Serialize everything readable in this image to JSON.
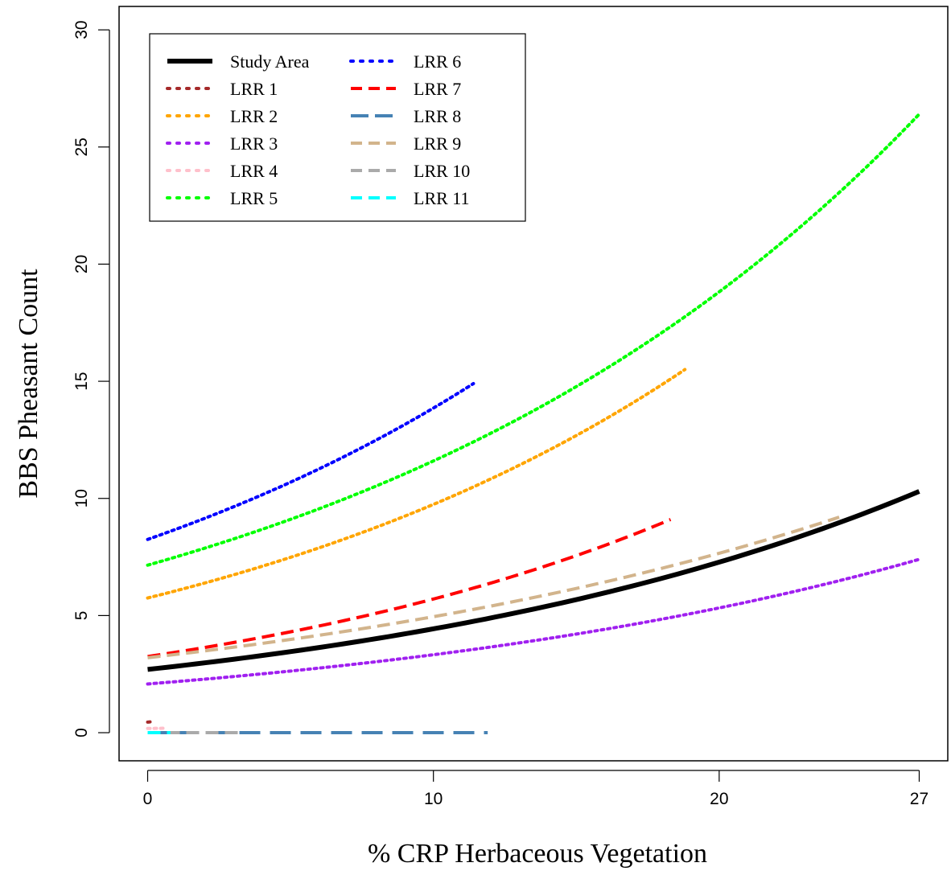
{
  "chart_data": {
    "type": "line",
    "title": "",
    "xlabel": "% CRP Herbaceous Vegetation",
    "ylabel": "BBS Pheasant Count",
    "xlim": [
      -1,
      28
    ],
    "ylim": [
      -1.2,
      31
    ],
    "xticks": [
      0,
      10,
      20,
      27
    ],
    "xtick_labels": [
      "0",
      "10",
      "20",
      "27"
    ],
    "yticks": [
      0,
      5,
      10,
      15,
      20,
      25,
      30
    ],
    "ytick_labels": [
      "0",
      "5",
      "10",
      "15",
      "20",
      "25",
      "30"
    ],
    "grid": false,
    "legend": {
      "position": "top-left",
      "columns": 2
    },
    "series": [
      {
        "name": "Study Area",
        "color": "#000000",
        "style": "solid",
        "x_max": 27,
        "y0": 2.7,
        "y1": 10.3
      },
      {
        "name": "LRR 1",
        "color": "#a52a2a",
        "style": "dotted",
        "x_max": 0.15,
        "y0": 0.45,
        "y1": 0.47
      },
      {
        "name": "LRR 2",
        "color": "#ffa500",
        "style": "dotted",
        "x_max": 18.8,
        "y0": 5.75,
        "y1": 15.5
      },
      {
        "name": "LRR 3",
        "color": "#a020f0",
        "style": "dotted",
        "x_max": 27,
        "y0": 2.08,
        "y1": 7.4
      },
      {
        "name": "LRR 4",
        "color": "#ffc0cb",
        "style": "dotted",
        "x_max": 0.6,
        "y0": 0.18,
        "y1": 0.19
      },
      {
        "name": "LRR 5",
        "color": "#00ff00",
        "style": "dotted",
        "x_max": 27,
        "y0": 7.15,
        "y1": 26.4
      },
      {
        "name": "LRR 6",
        "color": "#0000ff",
        "style": "dotted",
        "x_max": 11.4,
        "y0": 8.25,
        "y1": 14.9
      },
      {
        "name": "LRR 7",
        "color": "#ff0000",
        "style": "dashed",
        "x_max": 18.3,
        "y0": 3.25,
        "y1": 9.1
      },
      {
        "name": "LRR 8",
        "color": "#4682b4",
        "style": "longdash",
        "x_max": 11.9,
        "y0": 0.0,
        "y1": 0.0
      },
      {
        "name": "LRR 9",
        "color": "#d2b48c",
        "style": "dashed",
        "x_max": 24.2,
        "y0": 3.2,
        "y1": 9.2
      },
      {
        "name": "LRR 10",
        "color": "#aaaaaa",
        "style": "dashed",
        "x_max": 3.2,
        "y0": 0.0,
        "y1": 0.0
      },
      {
        "name": "LRR 11",
        "color": "#00ffff",
        "style": "dashed",
        "x_max": 0.8,
        "y0": 0.0,
        "y1": 0.0
      }
    ]
  }
}
